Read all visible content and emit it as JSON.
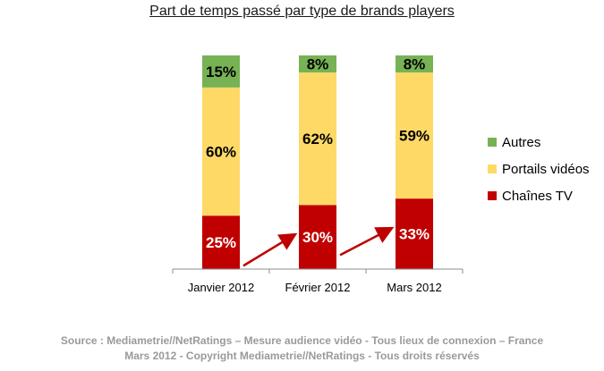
{
  "chart_data": {
    "type": "bar",
    "stacked": true,
    "title": "Part de temps passé par type de brands players",
    "categories": [
      "Janvier 2012",
      "Février 2012",
      "Mars 2012"
    ],
    "series": [
      {
        "name": "Chaînes TV",
        "values": [
          25,
          30,
          33
        ],
        "labels": [
          "25%",
          "30%",
          "33%"
        ],
        "color": "#C00000",
        "label_color": "#ffffff"
      },
      {
        "name": "Portails vidéos",
        "values": [
          60,
          62,
          59
        ],
        "labels": [
          "60%",
          "62%",
          "59%"
        ],
        "color": "#FFD966",
        "label_color": "#000000"
      },
      {
        "name": "Autres",
        "values": [
          15,
          8,
          8
        ],
        "labels": [
          "15%",
          "8%",
          "8%"
        ],
        "color": "#77B255",
        "label_color": "#000000"
      }
    ],
    "legend_order": [
      "Autres",
      "Portails vidéos",
      "Chaînes TV"
    ],
    "legend_position": "right",
    "ylim": [
      0,
      100
    ],
    "grid": false,
    "annotations": [
      "arrow from Janvier 2012 to Février 2012",
      "arrow from Février 2012 to Mars 2012"
    ],
    "arrow_color": "#C00000"
  },
  "footer": {
    "source_line1": "Source : Mediametrie//NetRatings – Mesure audience vidéo - Tous lieux de connexion – France",
    "source_line2": "Mars 2012 - Copyright Mediametrie//NetRatings - Tous droits réservés"
  }
}
